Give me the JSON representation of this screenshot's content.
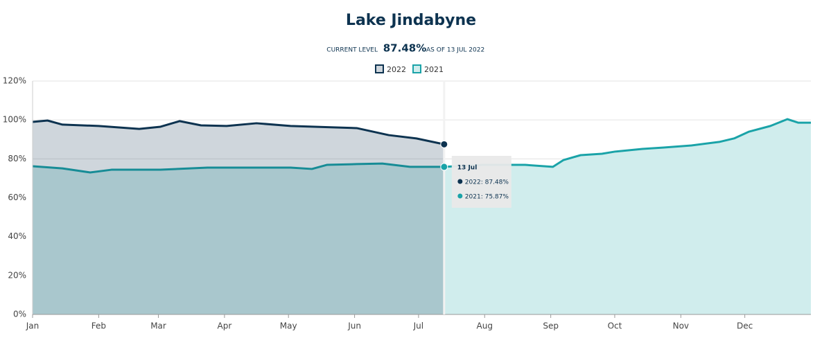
{
  "chart_data": {
    "type": "area",
    "title": "Lake Jindabyne",
    "subtitle": {
      "prefix": "CURRENT LEVEL",
      "level": "87.48%",
      "suffix": "AS OF 13 JUL 2022"
    },
    "xlim": [
      0,
      365
    ],
    "xticks": [
      {
        "value": 0,
        "label": "Jan"
      },
      {
        "value": 31,
        "label": "Feb"
      },
      {
        "value": 59,
        "label": "Mar"
      },
      {
        "value": 90,
        "label": "Apr"
      },
      {
        "value": 120,
        "label": "May"
      },
      {
        "value": 151,
        "label": "Jun"
      },
      {
        "value": 181,
        "label": "Jul"
      },
      {
        "value": 212,
        "label": "Aug"
      },
      {
        "value": 243,
        "label": "Sep"
      },
      {
        "value": 273,
        "label": "Oct"
      },
      {
        "value": 304,
        "label": "Nov"
      },
      {
        "value": 334,
        "label": "Dec"
      }
    ],
    "ylim": [
      0,
      120
    ],
    "yticks": [
      {
        "value": 0,
        "label": "0%"
      },
      {
        "value": 20,
        "label": "20%"
      },
      {
        "value": 40,
        "label": "40%"
      },
      {
        "value": 60,
        "label": "60%"
      },
      {
        "value": 80,
        "label": "80%"
      },
      {
        "value": 100,
        "label": "100%"
      },
      {
        "value": 120,
        "label": "120%"
      }
    ],
    "grid": true,
    "series": [
      {
        "name": "2022",
        "color": "#0d3350",
        "fill": "rgba(13,51,80,0.2)",
        "x": [
          0,
          7,
          14,
          31,
          50,
          60,
          69,
          79,
          91,
          105,
          121,
          141,
          152,
          167,
          180,
          193
        ],
        "values": [
          99,
          99.7,
          97.6,
          96.9,
          95.4,
          96.5,
          99.4,
          97.2,
          96.9,
          98.3,
          96.9,
          96.2,
          95.8,
          92.2,
          90.5,
          87.48
        ]
      },
      {
        "name": "2021",
        "color": "#1aa3a8",
        "fill": "#d0eded",
        "x": [
          0,
          14,
          27,
          37,
          60,
          82,
          121,
          131,
          138,
          152,
          164,
          177,
          193,
          211,
          231,
          244,
          249,
          257,
          267,
          273,
          286,
          296,
          309,
          322,
          329,
          336,
          346,
          354,
          359,
          365
        ],
        "values": [
          76.2,
          75.1,
          73,
          74.4,
          74.4,
          75.5,
          75.5,
          74.8,
          76.9,
          77.3,
          77.6,
          75.9,
          75.87,
          76.9,
          76.9,
          75.9,
          79.4,
          81.9,
          82.6,
          83.7,
          85.1,
          85.8,
          86.9,
          88.7,
          90.5,
          94,
          96.9,
          100.4,
          98.6,
          98.6
        ]
      }
    ],
    "tooltip": {
      "date": "13 Jul",
      "lines": [
        "2022: 87.48%",
        "2021: 75.87%"
      ]
    }
  }
}
